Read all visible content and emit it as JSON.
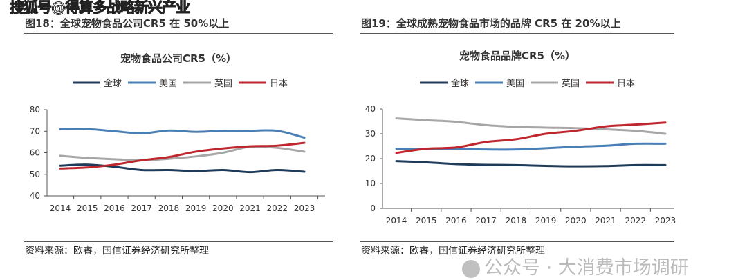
{
  "watermarks": {
    "top_left": "搜狐号@得算多战略新兴产业",
    "bottom_right": "公众号 · 大消费市场调研"
  },
  "colors": {
    "全球": "#1f3b5a",
    "美国": "#4a7fb5",
    "英国": "#a6a6a6",
    "日本": "#c0262d"
  },
  "chart_data": [
    {
      "type": "line",
      "figure_title": "图18：全球宠物食品公司CR5 在 50%以上",
      "title": "宠物食品公司CR5（%）",
      "source": "资料来源：欧睿，国信证券经济研究所整理",
      "legend_position": "top",
      "grid": false,
      "x": [
        "2014",
        "2015",
        "2016",
        "2017",
        "2018",
        "2019",
        "2020",
        "2021",
        "2022",
        "2023"
      ],
      "ylim": [
        40,
        80
      ],
      "yticks": [
        40,
        50,
        60,
        70,
        80
      ],
      "series": [
        {
          "name": "全球",
          "values": [
            54,
            54.5,
            53.5,
            52,
            52,
            51.5,
            52,
            51,
            52,
            51.2
          ]
        },
        {
          "name": "美国",
          "values": [
            71,
            71,
            70,
            69,
            70.3,
            69.7,
            70.2,
            70.2,
            70.2,
            67
          ]
        },
        {
          "name": "英国",
          "values": [
            58.6,
            57.6,
            57,
            56.5,
            57.2,
            58.3,
            60,
            62.8,
            62.3,
            60.5
          ]
        },
        {
          "name": "日本",
          "values": [
            52.7,
            53.2,
            54.5,
            56.5,
            58,
            60.5,
            62,
            63,
            63.3,
            64.6
          ]
        }
      ]
    },
    {
      "type": "line",
      "figure_title": "图19：全球成熟宠物食品市场的品牌 CR5 在 20%以上",
      "title": "宠物食品品牌CR5（%）",
      "source": "资料来源：欧睿，国信证券经济研究所整理",
      "legend_position": "top",
      "grid": false,
      "x": [
        "2014",
        "2015",
        "2016",
        "2017",
        "2018",
        "2019",
        "2020",
        "2021",
        "2022",
        "2023"
      ],
      "ylim": [
        0,
        40
      ],
      "yticks": [
        0,
        10,
        20,
        30,
        40
      ],
      "series": [
        {
          "name": "全球",
          "values": [
            19,
            18.5,
            17.8,
            17.5,
            17.4,
            17.1,
            16.9,
            17,
            17.4,
            17.4
          ]
        },
        {
          "name": "美国",
          "values": [
            24,
            24,
            24,
            23.7,
            23.7,
            24.2,
            24.8,
            25.2,
            26,
            26
          ]
        },
        {
          "name": "英国",
          "values": [
            36.2,
            35.5,
            34.8,
            33.5,
            32.8,
            32.5,
            32.3,
            31.8,
            31.2,
            30
          ]
        },
        {
          "name": "日本",
          "values": [
            22.3,
            24,
            24.5,
            26.7,
            27.8,
            30,
            31.2,
            33,
            33.7,
            34.5
          ]
        }
      ]
    }
  ]
}
